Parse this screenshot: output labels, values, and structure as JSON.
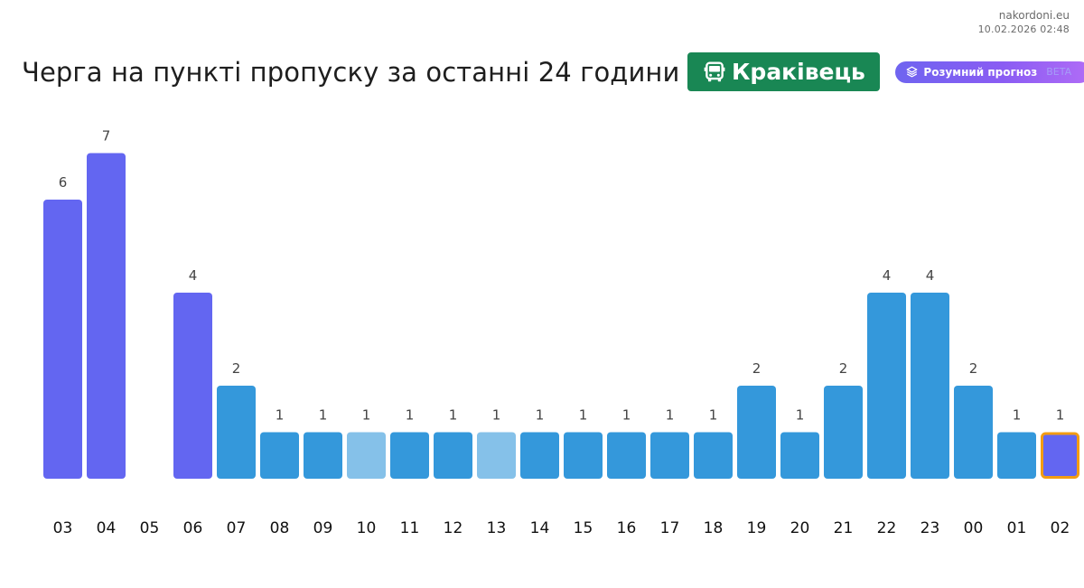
{
  "site": {
    "name": "nakordoni.eu",
    "timestamp": "10.02.2026 02:48"
  },
  "header": {
    "title": "Черга на пункті пропуску за останні 24 години",
    "border_point": "Краківець",
    "border_icon": "bus-icon",
    "forecast_label": "Розумний прогноз",
    "forecast_sub": "BETA",
    "forecast_icon": "layers-icon"
  },
  "colors": {
    "observed": "#3498db",
    "observed_light": "#85c1e9",
    "forecast": "#6366f1",
    "current_outline": "#f39c12",
    "badge": "#198754"
  },
  "chart_data": {
    "type": "bar",
    "title": "Черга на пункті пропуску за останні 24 години",
    "xlabel": "",
    "ylabel": "",
    "categories": [
      "03",
      "04",
      "05",
      "06",
      "07",
      "08",
      "09",
      "10",
      "11",
      "12",
      "13",
      "14",
      "15",
      "16",
      "17",
      "18",
      "19",
      "20",
      "21",
      "22",
      "23",
      "00",
      "01",
      "02"
    ],
    "values": [
      6,
      7,
      0,
      4,
      2,
      1,
      1,
      1,
      1,
      1,
      1,
      1,
      1,
      1,
      1,
      1,
      2,
      1,
      2,
      4,
      4,
      2,
      1,
      1
    ],
    "value_labels": [
      "6",
      "7",
      "",
      "4",
      "2",
      "1",
      "1",
      "1",
      "1",
      "1",
      "1",
      "1",
      "1",
      "1",
      "1",
      "1",
      "2",
      "1",
      "2",
      "4",
      "4",
      "2",
      "1",
      "1"
    ],
    "bar_kind": [
      "forecast",
      "forecast",
      "none",
      "forecast",
      "observed",
      "observed",
      "observed",
      "observed_light",
      "observed",
      "observed",
      "observed_light",
      "observed",
      "observed",
      "observed",
      "observed",
      "observed",
      "observed",
      "observed",
      "observed",
      "observed",
      "observed",
      "observed",
      "observed",
      "current"
    ],
    "ylim": [
      0,
      7
    ],
    "grid": false,
    "legend": "none"
  }
}
